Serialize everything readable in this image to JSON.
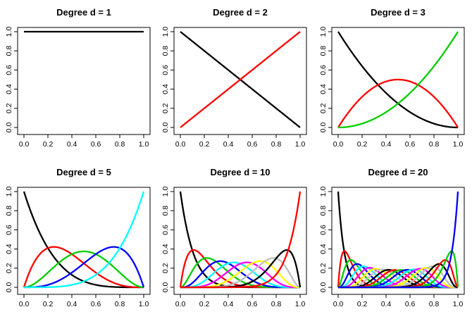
{
  "chart_data": [
    {
      "type": "line",
      "title": "Degree d = 1",
      "degree": 1,
      "xlim": [
        0,
        1
      ],
      "ylim": [
        0,
        1
      ],
      "x_ticks": [
        "0.0",
        "0.2",
        "0.4",
        "0.6",
        "0.8",
        "1.0"
      ],
      "y_ticks": [
        "0.0",
        "0.2",
        "0.4",
        "0.6",
        "0.8",
        "1.0"
      ],
      "series_colors": [
        "#000000"
      ]
    },
    {
      "type": "line",
      "title": "Degree d = 2",
      "degree": 2,
      "xlim": [
        0,
        1
      ],
      "ylim": [
        0,
        1
      ],
      "x_ticks": [
        "0.0",
        "0.2",
        "0.4",
        "0.6",
        "0.8",
        "1.0"
      ],
      "y_ticks": [
        "0.0",
        "0.2",
        "0.4",
        "0.6",
        "0.8",
        "1.0"
      ],
      "series_colors": [
        "#000000",
        "#ff0000"
      ]
    },
    {
      "type": "line",
      "title": "Degree d = 3",
      "degree": 3,
      "xlim": [
        0,
        1
      ],
      "ylim": [
        0,
        1
      ],
      "x_ticks": [
        "0.0",
        "0.2",
        "0.4",
        "0.6",
        "0.8",
        "1.0"
      ],
      "y_ticks": [
        "0.0",
        "0.2",
        "0.4",
        "0.6",
        "0.8",
        "1.0"
      ],
      "series_colors": [
        "#000000",
        "#ff0000",
        "#00cd00"
      ]
    },
    {
      "type": "line",
      "title": "Degree d = 5",
      "degree": 5,
      "xlim": [
        0,
        1
      ],
      "ylim": [
        0,
        1
      ],
      "x_ticks": [
        "0.0",
        "0.2",
        "0.4",
        "0.6",
        "0.8",
        "1.0"
      ],
      "y_ticks": [
        "0.0",
        "0.2",
        "0.4",
        "0.6",
        "0.8",
        "1.0"
      ],
      "series_colors": [
        "#000000",
        "#ff0000",
        "#00cd00",
        "#0000ff",
        "#00ffff"
      ]
    },
    {
      "type": "line",
      "title": "Degree d = 10",
      "degree": 10,
      "xlim": [
        0,
        1
      ],
      "ylim": [
        0,
        1
      ],
      "x_ticks": [
        "0.0",
        "0.2",
        "0.4",
        "0.6",
        "0.8",
        "1.0"
      ],
      "y_ticks": [
        "0.0",
        "0.2",
        "0.4",
        "0.6",
        "0.8",
        "1.0"
      ],
      "series_colors": [
        "#000000",
        "#ff0000",
        "#00cd00",
        "#0000ff",
        "#00ffff",
        "#ff00ff",
        "#ffff00",
        "#bebebe",
        "#000000",
        "#ff0000"
      ]
    },
    {
      "type": "line",
      "title": "Degree d = 20",
      "degree": 20,
      "xlim": [
        0,
        1
      ],
      "ylim": [
        0,
        1
      ],
      "x_ticks": [
        "0.0",
        "0.2",
        "0.4",
        "0.6",
        "0.8",
        "1.0"
      ],
      "y_ticks": [
        "0.0",
        "0.2",
        "0.4",
        "0.6",
        "0.8",
        "1.0"
      ],
      "series_colors": [
        "#000000",
        "#ff0000",
        "#00cd00",
        "#0000ff",
        "#00ffff",
        "#ff00ff",
        "#ffff00",
        "#bebebe",
        "#000000",
        "#ff0000",
        "#00cd00",
        "#0000ff",
        "#00ffff",
        "#ff00ff",
        "#ffff00",
        "#bebebe",
        "#000000",
        "#ff0000",
        "#00cd00",
        "#0000ff"
      ]
    }
  ]
}
